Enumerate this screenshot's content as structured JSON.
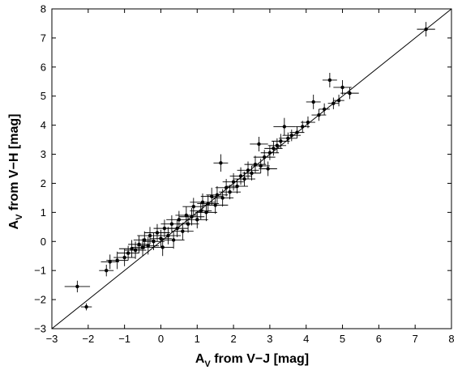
{
  "chart_data": {
    "type": "scatter",
    "title": "",
    "xlabel": {
      "main": "A",
      "sub": "V",
      "rest": " from V−J [mag]"
    },
    "ylabel": {
      "main": "A",
      "sub": "V",
      "rest": " from V−H [mag]"
    },
    "xlim": [
      -3,
      8
    ],
    "ylim": [
      -3,
      8
    ],
    "xticks": [
      "−3",
      "−2",
      "−1",
      "0",
      "1",
      "2",
      "3",
      "4",
      "5",
      "6",
      "7",
      "8"
    ],
    "yticks": [
      "−3",
      "−2",
      "−1",
      "0",
      "1",
      "2",
      "3",
      "4",
      "5",
      "6",
      "7",
      "8"
    ],
    "grid": false,
    "reference_line": {
      "type": "y=x",
      "color": "#000000"
    },
    "marker_color": "#000000",
    "series": [
      {
        "points": [
          [
            -2.3,
            -1.55,
            0.35,
            0.2
          ],
          [
            -2.05,
            -2.25,
            0.15,
            0.12
          ],
          [
            -1.5,
            -1.0,
            0.2,
            0.2
          ],
          [
            -1.4,
            -0.7,
            0.25,
            0.25
          ],
          [
            -1.2,
            -0.65,
            0.3,
            0.3
          ],
          [
            -1.0,
            -0.55,
            0.3,
            0.3
          ],
          [
            -0.9,
            -0.4,
            0.3,
            0.25
          ],
          [
            -0.8,
            -0.25,
            0.35,
            0.3
          ],
          [
            -0.7,
            -0.3,
            0.3,
            0.3
          ],
          [
            -0.6,
            -0.1,
            0.3,
            0.3
          ],
          [
            -0.5,
            -0.2,
            0.3,
            0.3
          ],
          [
            -0.45,
            0.05,
            0.3,
            0.3
          ],
          [
            -0.35,
            -0.15,
            0.3,
            0.3
          ],
          [
            -0.3,
            0.2,
            0.35,
            0.3
          ],
          [
            -0.2,
            0.0,
            0.3,
            0.3
          ],
          [
            -0.1,
            0.3,
            0.35,
            0.3
          ],
          [
            0.0,
            0.1,
            0.3,
            0.3
          ],
          [
            0.05,
            -0.2,
            0.3,
            0.3
          ],
          [
            0.1,
            0.45,
            0.3,
            0.3
          ],
          [
            0.2,
            0.2,
            0.35,
            0.3
          ],
          [
            0.3,
            0.6,
            0.3,
            0.3
          ],
          [
            0.35,
            0.05,
            0.3,
            0.3
          ],
          [
            0.45,
            0.45,
            0.3,
            0.3
          ],
          [
            0.5,
            0.75,
            0.35,
            0.3
          ],
          [
            0.6,
            0.35,
            0.3,
            0.3
          ],
          [
            0.7,
            0.9,
            0.3,
            0.3
          ],
          [
            0.75,
            0.6,
            0.3,
            0.3
          ],
          [
            0.85,
            0.85,
            0.35,
            0.3
          ],
          [
            0.9,
            1.2,
            0.3,
            0.3
          ],
          [
            1.0,
            0.75,
            0.3,
            0.3
          ],
          [
            1.1,
            1.05,
            0.3,
            0.3
          ],
          [
            1.15,
            1.35,
            0.35,
            0.3
          ],
          [
            1.25,
            1.0,
            0.3,
            0.3
          ],
          [
            1.3,
            1.3,
            0.3,
            0.3
          ],
          [
            1.4,
            1.55,
            0.3,
            0.3
          ],
          [
            1.5,
            1.25,
            0.35,
            0.3
          ],
          [
            1.55,
            1.6,
            0.3,
            0.3
          ],
          [
            1.65,
            2.7,
            0.2,
            0.3
          ],
          [
            1.7,
            1.5,
            0.3,
            0.3
          ],
          [
            1.8,
            1.85,
            0.3,
            0.3
          ],
          [
            1.9,
            1.7,
            0.3,
            0.25
          ],
          [
            2.0,
            2.05,
            0.3,
            0.3
          ],
          [
            2.1,
            1.9,
            0.3,
            0.25
          ],
          [
            2.2,
            2.25,
            0.3,
            0.3
          ],
          [
            2.3,
            2.15,
            0.3,
            0.25
          ],
          [
            2.4,
            2.45,
            0.3,
            0.3
          ],
          [
            2.5,
            2.35,
            0.25,
            0.25
          ],
          [
            2.6,
            2.65,
            0.3,
            0.3
          ],
          [
            2.7,
            3.35,
            0.25,
            0.25
          ],
          [
            2.75,
            2.6,
            0.25,
            0.25
          ],
          [
            2.85,
            2.9,
            0.3,
            0.25
          ],
          [
            2.95,
            2.5,
            0.25,
            0.25
          ],
          [
            3.0,
            3.05,
            0.25,
            0.25
          ],
          [
            3.1,
            3.2,
            0.25,
            0.25
          ],
          [
            3.2,
            3.3,
            0.25,
            0.25
          ],
          [
            3.3,
            3.45,
            0.25,
            0.25
          ],
          [
            3.4,
            3.95,
            0.3,
            0.3
          ],
          [
            3.5,
            3.55,
            0.25,
            0.2
          ],
          [
            3.6,
            3.65,
            0.25,
            0.2
          ],
          [
            3.75,
            3.75,
            0.2,
            0.2
          ],
          [
            3.9,
            3.95,
            0.2,
            0.2
          ],
          [
            4.05,
            4.1,
            0.2,
            0.2
          ],
          [
            4.2,
            4.8,
            0.2,
            0.25
          ],
          [
            4.35,
            4.35,
            0.2,
            0.2
          ],
          [
            4.5,
            4.55,
            0.15,
            0.2
          ],
          [
            4.65,
            5.55,
            0.2,
            0.25
          ],
          [
            4.75,
            4.75,
            0.15,
            0.2
          ],
          [
            4.9,
            4.85,
            0.15,
            0.2
          ],
          [
            5.0,
            5.3,
            0.25,
            0.25
          ],
          [
            5.2,
            5.1,
            0.25,
            0.2
          ],
          [
            7.3,
            7.3,
            0.25,
            0.25
          ]
        ]
      }
    ]
  }
}
